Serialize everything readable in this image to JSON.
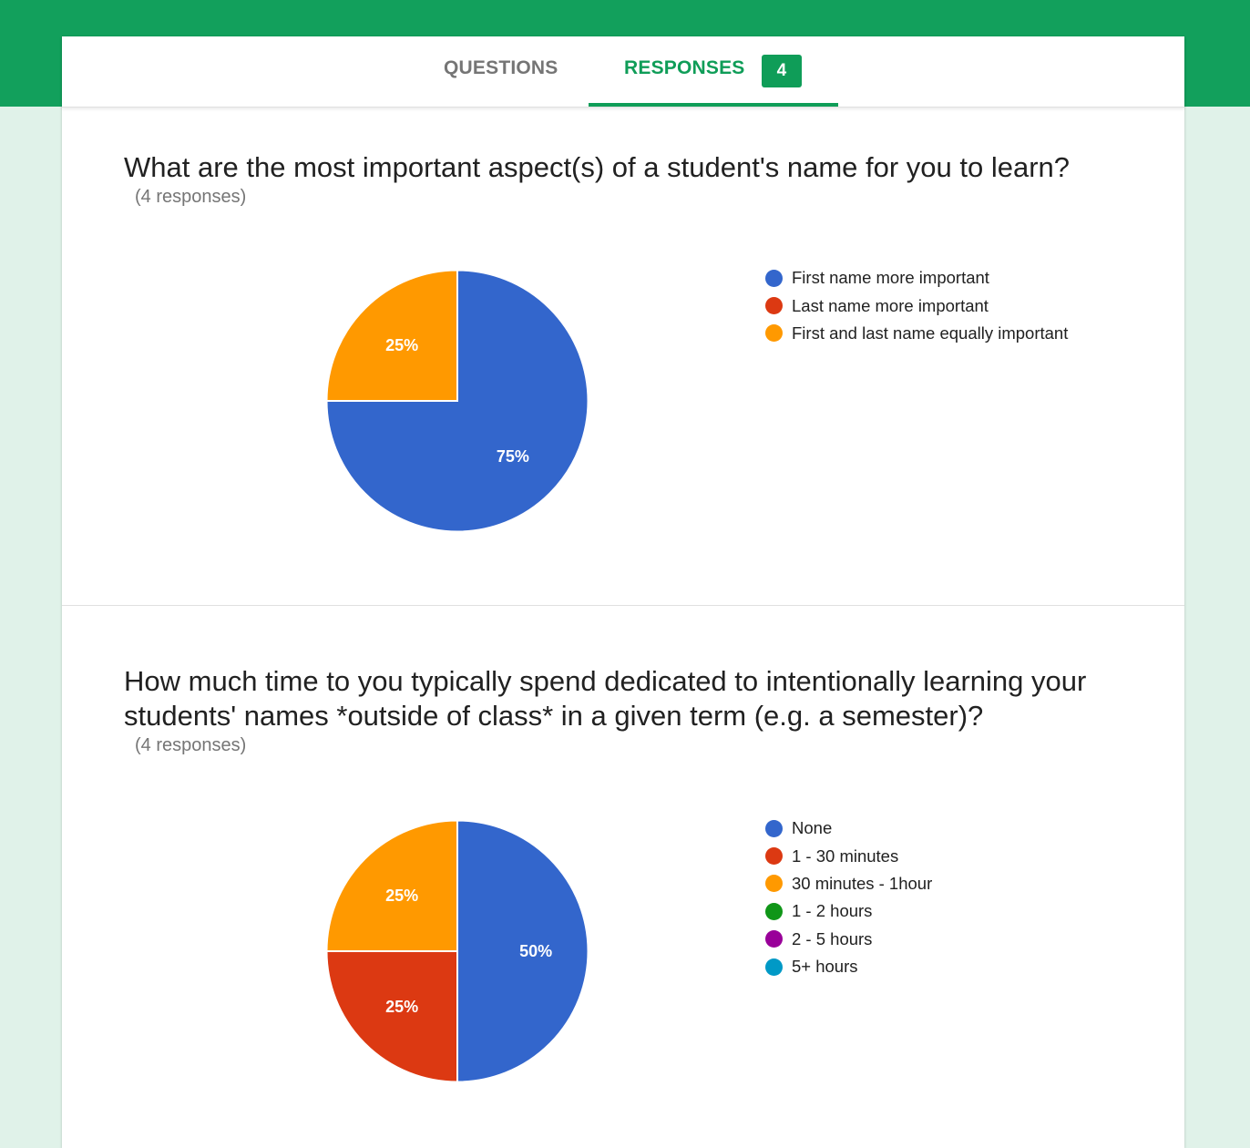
{
  "tabs": {
    "questions_label": "QUESTIONS",
    "responses_label": "RESPONSES",
    "responses_count": "4"
  },
  "colors": {
    "header_green": "#12a05c",
    "page_background": "#e0f2e9",
    "accent": "#0f9d58"
  },
  "questions": [
    {
      "title": "What are the most important aspect(s) of a student's name for you to learn?",
      "response_count": "(4 responses)"
    },
    {
      "title": "How much time to you typically spend dedicated to intentionally learning your students' names *outside of class* in a given term (e.g. a semester)?",
      "response_count": "(4 responses)"
    }
  ],
  "chart_data": [
    {
      "type": "pie",
      "title": "",
      "legend_position": "right",
      "series": [
        {
          "name": "First name more important",
          "value": 75,
          "label": "75%",
          "color": "#3366cc"
        },
        {
          "name": "Last name more important",
          "value": 0,
          "label": "",
          "color": "#dc3912"
        },
        {
          "name": "First and last name equally important",
          "value": 25,
          "label": "25%",
          "color": "#ff9900"
        }
      ]
    },
    {
      "type": "pie",
      "title": "",
      "legend_position": "right",
      "series": [
        {
          "name": "None",
          "value": 50,
          "label": "50%",
          "color": "#3366cc"
        },
        {
          "name": "1 - 30 minutes",
          "value": 25,
          "label": "25%",
          "color": "#dc3912"
        },
        {
          "name": "30 minutes - 1hour",
          "value": 25,
          "label": "25%",
          "color": "#ff9900"
        },
        {
          "name": "1 - 2 hours",
          "value": 0,
          "label": "",
          "color": "#109618"
        },
        {
          "name": "2 - 5 hours",
          "value": 0,
          "label": "",
          "color": "#990099"
        },
        {
          "name": "5+ hours",
          "value": 0,
          "label": "",
          "color": "#0099c6"
        }
      ]
    }
  ]
}
